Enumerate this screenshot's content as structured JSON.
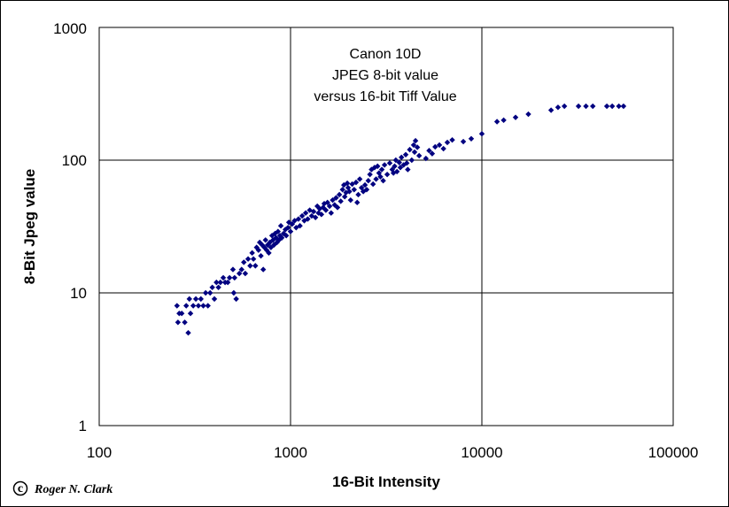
{
  "chart_data": {
    "type": "scatter",
    "title_lines": [
      "Canon 10D",
      "JPEG 8-bit value",
      "versus 16-bit Tiff Value"
    ],
    "xlabel": "16-Bit Intensity",
    "ylabel": "8-Bit Jpeg value",
    "x_scale": "log",
    "y_scale": "log",
    "xlim": [
      100,
      100000
    ],
    "ylim": [
      1,
      1000
    ],
    "x_ticks": [
      "100",
      "1000",
      "10000",
      "100000"
    ],
    "y_ticks": [
      "1",
      "10",
      "100",
      "1000"
    ],
    "grid": true,
    "marker_color": "#000080",
    "series": [
      {
        "name": "Canon 10D",
        "points": [
          [
            255,
            8
          ],
          [
            258,
            6
          ],
          [
            262,
            7
          ],
          [
            270,
            7
          ],
          [
            280,
            6
          ],
          [
            285,
            8
          ],
          [
            292,
            5
          ],
          [
            296,
            9
          ],
          [
            300,
            7
          ],
          [
            310,
            8
          ],
          [
            320,
            9
          ],
          [
            330,
            8
          ],
          [
            340,
            9
          ],
          [
            350,
            8
          ],
          [
            360,
            10
          ],
          [
            370,
            8
          ],
          [
            380,
            10
          ],
          [
            390,
            11
          ],
          [
            400,
            9
          ],
          [
            410,
            12
          ],
          [
            420,
            11
          ],
          [
            430,
            12
          ],
          [
            445,
            13
          ],
          [
            455,
            12
          ],
          [
            470,
            12
          ],
          [
            480,
            13
          ],
          [
            500,
            15
          ],
          [
            505,
            10
          ],
          [
            510,
            13
          ],
          [
            520,
            9
          ],
          [
            540,
            14
          ],
          [
            555,
            15
          ],
          [
            570,
            17
          ],
          [
            580,
            14
          ],
          [
            600,
            18
          ],
          [
            615,
            16
          ],
          [
            630,
            20
          ],
          [
            640,
            18
          ],
          [
            655,
            16
          ],
          [
            665,
            22
          ],
          [
            680,
            21
          ],
          [
            690,
            24
          ],
          [
            700,
            19
          ],
          [
            710,
            23
          ],
          [
            720,
            15
          ],
          [
            730,
            22
          ],
          [
            740,
            25
          ],
          [
            750,
            21
          ],
          [
            760,
            23
          ],
          [
            770,
            20
          ],
          [
            780,
            24
          ],
          [
            790,
            22
          ],
          [
            800,
            27
          ],
          [
            810,
            25
          ],
          [
            820,
            23
          ],
          [
            830,
            28
          ],
          [
            840,
            26
          ],
          [
            850,
            24
          ],
          [
            860,
            29
          ],
          [
            870,
            25
          ],
          [
            880,
            27
          ],
          [
            890,
            32
          ],
          [
            900,
            26
          ],
          [
            920,
            28
          ],
          [
            940,
            30
          ],
          [
            950,
            27
          ],
          [
            970,
            31
          ],
          [
            980,
            34
          ],
          [
            1000,
            29
          ],
          [
            1020,
            33
          ],
          [
            1050,
            35
          ],
          [
            1070,
            31
          ],
          [
            1100,
            36
          ],
          [
            1120,
            32
          ],
          [
            1150,
            38
          ],
          [
            1180,
            35
          ],
          [
            1200,
            40
          ],
          [
            1230,
            36
          ],
          [
            1260,
            42
          ],
          [
            1290,
            38
          ],
          [
            1320,
            41
          ],
          [
            1350,
            37
          ],
          [
            1380,
            45
          ],
          [
            1400,
            40
          ],
          [
            1420,
            43
          ],
          [
            1450,
            39
          ],
          [
            1480,
            44
          ],
          [
            1500,
            47
          ],
          [
            1530,
            42
          ],
          [
            1560,
            48
          ],
          [
            1600,
            45
          ],
          [
            1630,
            40
          ],
          [
            1660,
            50
          ],
          [
            1700,
            46
          ],
          [
            1730,
            52
          ],
          [
            1760,
            44
          ],
          [
            1800,
            55
          ],
          [
            1830,
            49
          ],
          [
            1870,
            60
          ],
          [
            1900,
            65
          ],
          [
            1920,
            53
          ],
          [
            1950,
            57
          ],
          [
            1980,
            67
          ],
          [
            2000,
            62
          ],
          [
            2030,
            58
          ],
          [
            2060,
            50
          ],
          [
            2100,
            66
          ],
          [
            2150,
            60
          ],
          [
            2200,
            68
          ],
          [
            2230,
            48
          ],
          [
            2260,
            55
          ],
          [
            2300,
            72
          ],
          [
            2350,
            62
          ],
          [
            2400,
            58
          ],
          [
            2450,
            65
          ],
          [
            2500,
            60
          ],
          [
            2550,
            70
          ],
          [
            2600,
            78
          ],
          [
            2650,
            85
          ],
          [
            2700,
            66
          ],
          [
            2750,
            88
          ],
          [
            2800,
            72
          ],
          [
            2850,
            90
          ],
          [
            2900,
            80
          ],
          [
            2950,
            75
          ],
          [
            3000,
            85
          ],
          [
            3050,
            70
          ],
          [
            3100,
            92
          ],
          [
            3200,
            78
          ],
          [
            3300,
            95
          ],
          [
            3400,
            85
          ],
          [
            3450,
            80
          ],
          [
            3500,
            90
          ],
          [
            3550,
            100
          ],
          [
            3600,
            82
          ],
          [
            3700,
            96
          ],
          [
            3750,
            88
          ],
          [
            3800,
            105
          ],
          [
            3900,
            92
          ],
          [
            4000,
            110
          ],
          [
            4050,
            95
          ],
          [
            4100,
            85
          ],
          [
            4200,
            120
          ],
          [
            4300,
            100
          ],
          [
            4400,
            130
          ],
          [
            4450,
            115
          ],
          [
            4500,
            140
          ],
          [
            4600,
            125
          ],
          [
            4700,
            108
          ],
          [
            5100,
            103
          ],
          [
            5300,
            118
          ],
          [
            5500,
            112
          ],
          [
            5700,
            126
          ],
          [
            6000,
            130
          ],
          [
            6300,
            122
          ],
          [
            6600,
            136
          ],
          [
            7000,
            142
          ],
          [
            8000,
            138
          ],
          [
            8800,
            145
          ],
          [
            10000,
            158
          ],
          [
            12000,
            195
          ],
          [
            13000,
            200
          ],
          [
            15000,
            210
          ],
          [
            17500,
            222
          ],
          [
            23000,
            238
          ],
          [
            25000,
            250
          ],
          [
            27000,
            255
          ],
          [
            32000,
            255
          ],
          [
            35000,
            255
          ],
          [
            38000,
            255
          ],
          [
            45000,
            255
          ],
          [
            48000,
            255
          ],
          [
            52000,
            255
          ],
          [
            55000,
            255
          ]
        ]
      }
    ]
  },
  "credit": {
    "symbol": "c",
    "text": "Roger N. Clark"
  }
}
